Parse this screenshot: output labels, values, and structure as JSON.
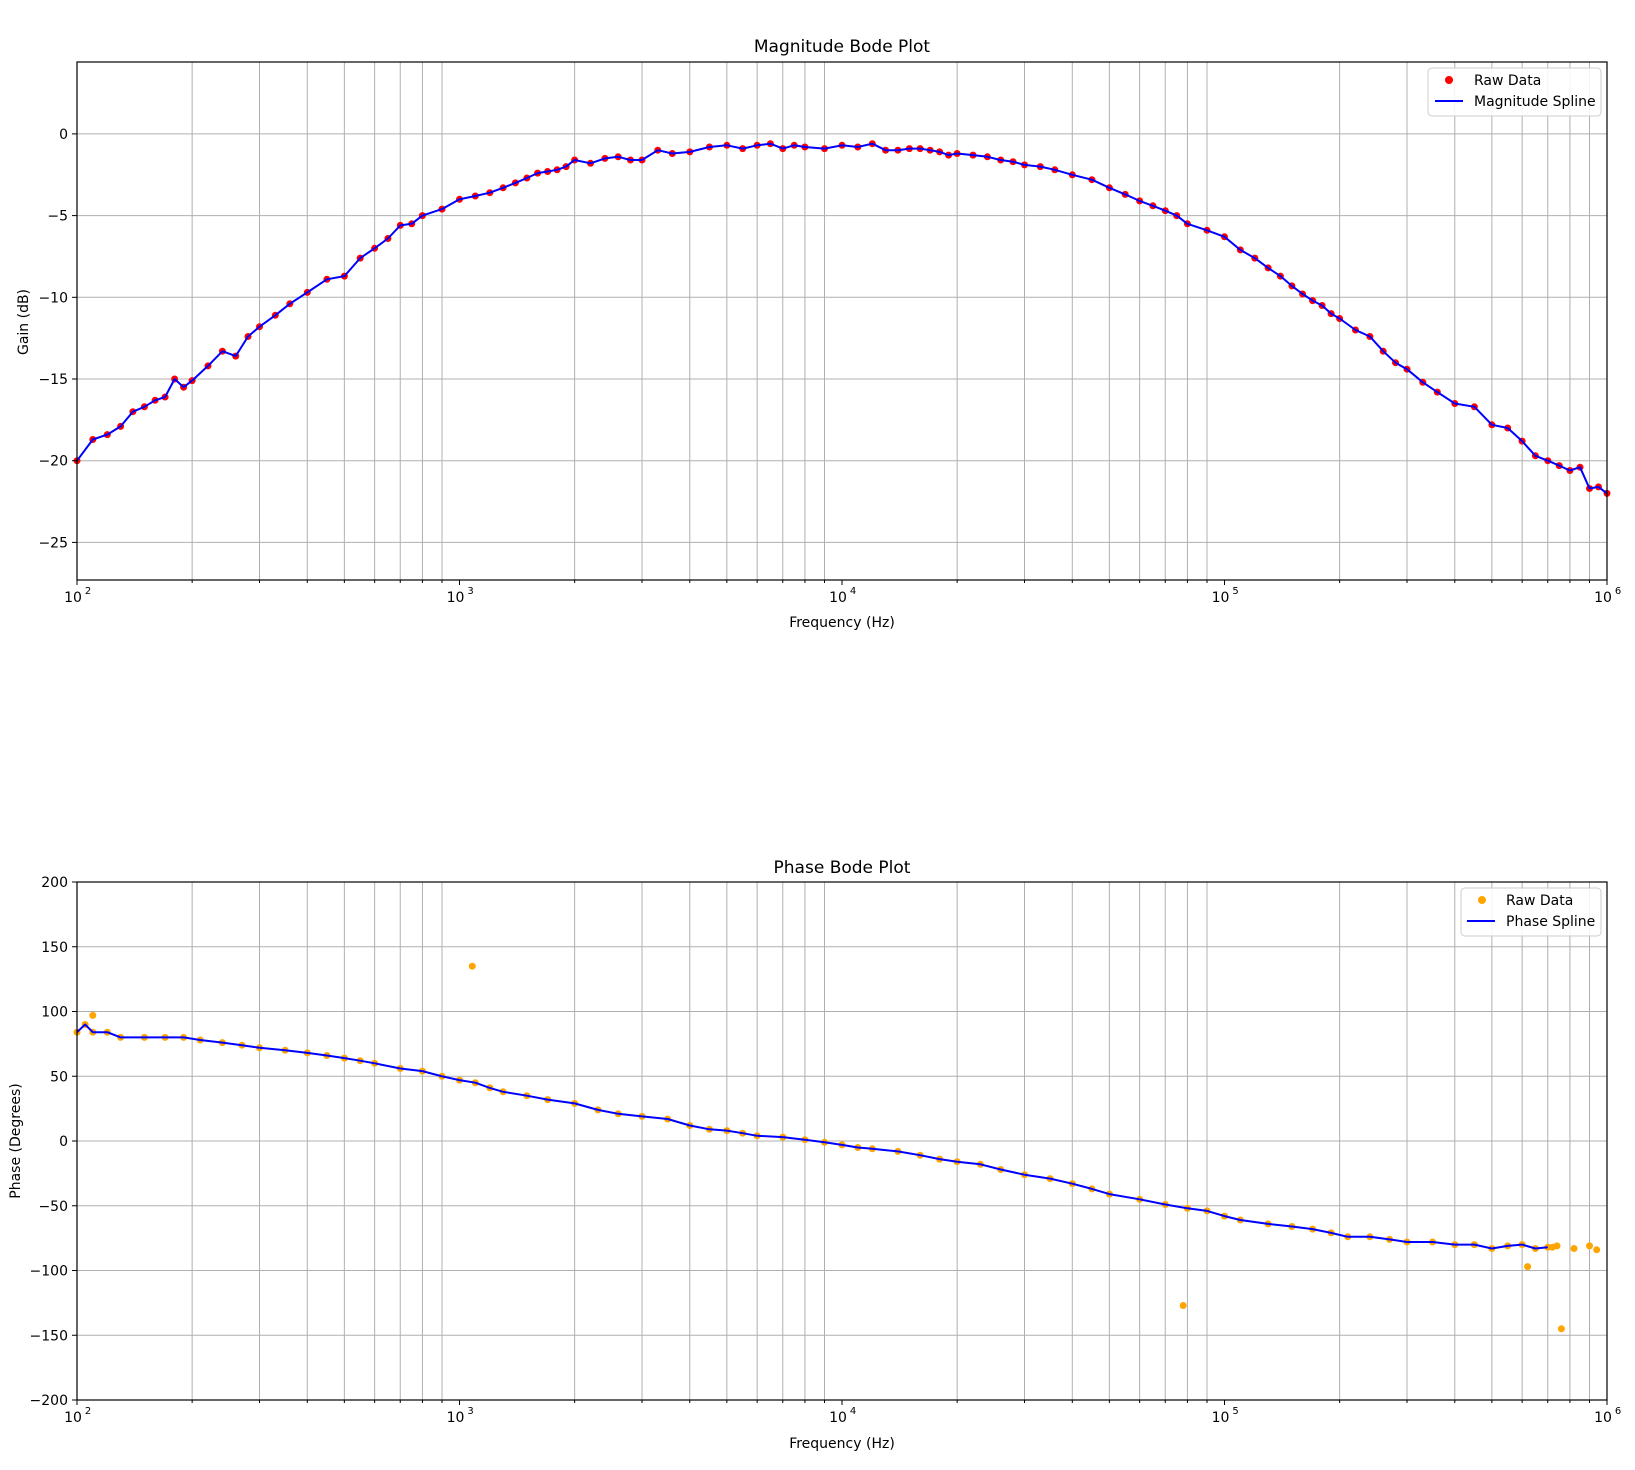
{
  "chart_data": [
    {
      "type": "line",
      "title": "Magnitude Bode Plot",
      "xlabel": "Frequency (Hz)",
      "ylabel": "Gain (dB)",
      "xscale": "log",
      "xlim": [
        100,
        1000000
      ],
      "ylim": [
        -27.3,
        4.4
      ],
      "yticks": [
        0,
        -5,
        -10,
        -15,
        -20,
        -25
      ],
      "ytick_labels": [
        "0",
        "−5",
        "−10",
        "−15",
        "−20",
        "−25"
      ],
      "xtick_labels": [
        {
          "base": "10",
          "exp": "2"
        },
        {
          "base": "10",
          "exp": "3"
        },
        {
          "base": "10",
          "exp": "4"
        },
        {
          "base": "10",
          "exp": "5"
        },
        {
          "base": "10",
          "exp": "6"
        }
      ],
      "grid": true,
      "legend_position": "top-right",
      "series": [
        {
          "name": "Raw Data",
          "kind": "scatter",
          "color": "#ff0000"
        },
        {
          "name": "Magnitude Spline",
          "kind": "line",
          "color": "#0000ff"
        }
      ],
      "x": [
        100,
        110,
        120,
        130,
        140,
        150,
        160,
        170,
        180,
        190,
        200,
        220,
        240,
        260,
        280,
        300,
        330,
        360,
        400,
        450,
        500,
        550,
        600,
        650,
        700,
        750,
        800,
        900,
        1000,
        1100,
        1200,
        1300,
        1400,
        1500,
        1600,
        1700,
        1800,
        1900,
        2000,
        2200,
        2400,
        2600,
        2800,
        3000,
        3300,
        3600,
        4000,
        4500,
        5000,
        5500,
        6000,
        6500,
        7000,
        7500,
        8000,
        9000,
        10000,
        11000,
        12000,
        13000,
        14000,
        15000,
        16000,
        17000,
        18000,
        19000,
        20000,
        22000,
        24000,
        26000,
        28000,
        30000,
        33000,
        36000,
        40000,
        45000,
        50000,
        55000,
        60000,
        65000,
        70000,
        75000,
        80000,
        90000,
        100000,
        110000,
        120000,
        130000,
        140000,
        150000,
        160000,
        170000,
        180000,
        190000,
        200000,
        220000,
        240000,
        260000,
        280000,
        300000,
        330000,
        360000,
        400000,
        450000,
        500000,
        550000,
        600000,
        650000,
        700000,
        750000,
        800000,
        850000,
        900000,
        950000,
        1000000
      ],
      "y": [
        -20.0,
        -18.7,
        -18.4,
        -17.9,
        -17.0,
        -16.7,
        -16.3,
        -16.1,
        -15.0,
        -15.5,
        -15.1,
        -14.2,
        -13.3,
        -13.6,
        -12.4,
        -11.8,
        -11.1,
        -10.4,
        -9.7,
        -8.9,
        -8.7,
        -7.6,
        -7.0,
        -6.4,
        -5.6,
        -5.5,
        -5.0,
        -4.6,
        -4.0,
        -3.8,
        -3.6,
        -3.3,
        -3.0,
        -2.7,
        -2.4,
        -2.3,
        -2.2,
        -2.0,
        -1.6,
        -1.8,
        -1.5,
        -1.4,
        -1.6,
        -1.6,
        -1.0,
        -1.2,
        -1.1,
        -0.8,
        -0.7,
        -0.9,
        -0.7,
        -0.6,
        -0.9,
        -0.7,
        -0.8,
        -0.9,
        -0.7,
        -0.8,
        -0.6,
        -1.0,
        -1.0,
        -0.9,
        -0.9,
        -1.0,
        -1.1,
        -1.3,
        -1.2,
        -1.3,
        -1.4,
        -1.6,
        -1.7,
        -1.9,
        -2.0,
        -2.2,
        -2.5,
        -2.8,
        -3.3,
        -3.7,
        -4.1,
        -4.4,
        -4.7,
        -5.0,
        -5.5,
        -5.9,
        -6.3,
        -7.1,
        -7.6,
        -8.2,
        -8.7,
        -9.3,
        -9.8,
        -10.2,
        -10.5,
        -11.0,
        -11.3,
        -12.0,
        -12.4,
        -13.3,
        -14.0,
        -14.4,
        -15.2,
        -15.8,
        -16.5,
        -16.7,
        -17.8,
        -18.0,
        -18.8,
        -19.7,
        -20.0,
        -20.3,
        -20.6,
        -20.4,
        -21.7,
        -21.6,
        -22.0
      ]
    },
    {
      "type": "line",
      "title": "Phase Bode Plot",
      "xlabel": "Frequency (Hz)",
      "ylabel": "Phase (Degrees)",
      "xscale": "log",
      "xlim": [
        100,
        1000000
      ],
      "ylim": [
        -200,
        200
      ],
      "yticks": [
        200,
        150,
        100,
        50,
        0,
        -50,
        -100,
        -150,
        -200
      ],
      "ytick_labels": [
        "200",
        "150",
        "100",
        "50",
        "0",
        "−50",
        "−100",
        "−150",
        "−200"
      ],
      "xtick_labels": [
        {
          "base": "10",
          "exp": "2"
        },
        {
          "base": "10",
          "exp": "3"
        },
        {
          "base": "10",
          "exp": "4"
        },
        {
          "base": "10",
          "exp": "5"
        },
        {
          "base": "10",
          "exp": "6"
        }
      ],
      "grid": true,
      "legend_position": "top-right",
      "series": [
        {
          "name": "Raw Data",
          "kind": "scatter",
          "color": "#ffa500"
        },
        {
          "name": "Phase Spline",
          "kind": "line",
          "color": "#0000ff"
        }
      ],
      "x": [
        100,
        105,
        110,
        120,
        130,
        150,
        170,
        190,
        210,
        240,
        270,
        300,
        350,
        400,
        450,
        500,
        550,
        600,
        700,
        800,
        900,
        1000,
        1100,
        1200,
        1300,
        1500,
        1700,
        2000,
        2300,
        2600,
        3000,
        3500,
        4000,
        4500,
        5000,
        5500,
        6000,
        7000,
        8000,
        9000,
        10000,
        11000,
        12000,
        14000,
        16000,
        18000,
        20000,
        23000,
        26000,
        30000,
        35000,
        40000,
        45000,
        50000,
        60000,
        70000,
        80000,
        90000,
        100000,
        110000,
        130000,
        150000,
        170000,
        190000,
        210000,
        240000,
        270000,
        300000,
        350000,
        400000,
        450000,
        500000,
        550000,
        600000,
        650000,
        700000
      ],
      "y": [
        84,
        90,
        84,
        84,
        80,
        80,
        80,
        80,
        78,
        76,
        74,
        72,
        70,
        68,
        66,
        64,
        62,
        60,
        56,
        54,
        50,
        47,
        45,
        41,
        38,
        35,
        32,
        29,
        24,
        21,
        19,
        17,
        12,
        9,
        8,
        6,
        4,
        3,
        1,
        -1,
        -3,
        -5,
        -6,
        -8,
        -11,
        -14,
        -16,
        -18,
        -22,
        -26,
        -29,
        -33,
        -37,
        -41,
        -45,
        -49,
        -52,
        -54,
        -58,
        -61,
        -64,
        -66,
        -68,
        -71,
        -74,
        -74,
        -76,
        -78,
        -78,
        -80,
        -80,
        -83,
        -81,
        -80,
        -83,
        -82
      ],
      "outliers": [
        {
          "x": 110,
          "y": 97
        },
        {
          "x": 1080,
          "y": 135
        },
        {
          "x": 78000,
          "y": -127
        },
        {
          "x": 620000,
          "y": -97
        },
        {
          "x": 720000,
          "y": -82
        },
        {
          "x": 740000,
          "y": -81
        },
        {
          "x": 760000,
          "y": -145
        },
        {
          "x": 820000,
          "y": -83
        },
        {
          "x": 900000,
          "y": -81
        },
        {
          "x": 940000,
          "y": -84
        }
      ]
    }
  ]
}
